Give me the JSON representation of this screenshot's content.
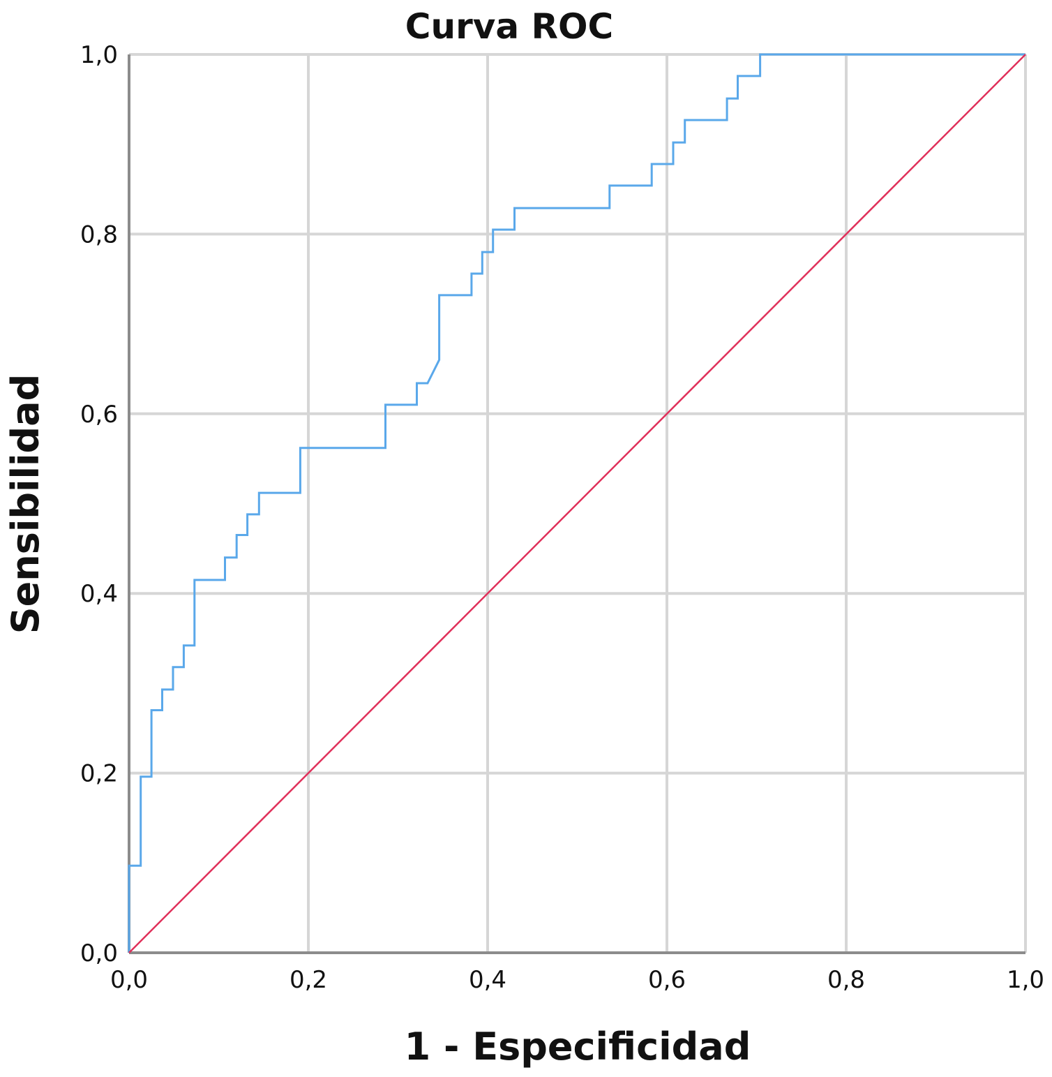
{
  "chart_data": {
    "type": "line",
    "title": "Curva ROC",
    "xlabel": "1 - Especificidad",
    "ylabel": "Sensibilidad",
    "xlim": [
      0,
      1
    ],
    "ylim": [
      0,
      1
    ],
    "x_ticks": [
      "0,0",
      "0,2",
      "0,4",
      "0,6",
      "0,8",
      "1,0"
    ],
    "y_ticks": [
      "0,0",
      "0,2",
      "0,4",
      "0,6",
      "0,8",
      "1,0"
    ],
    "grid": true,
    "colors": {
      "curve": "#5aa8ea",
      "reference": "#e0305a",
      "grid": "#d6d6d6",
      "axis": "#8c8c8c"
    },
    "series": [
      {
        "points": [
          [
            0.0,
            0.0
          ],
          [
            0.0,
            0.097
          ],
          [
            0.013,
            0.097
          ],
          [
            0.013,
            0.196
          ],
          [
            0.025,
            0.196
          ],
          [
            0.025,
            0.27
          ],
          [
            0.037,
            0.27
          ],
          [
            0.037,
            0.293
          ],
          [
            0.049,
            0.293
          ],
          [
            0.049,
            0.318
          ],
          [
            0.061,
            0.318
          ],
          [
            0.061,
            0.342
          ],
          [
            0.073,
            0.342
          ],
          [
            0.073,
            0.415
          ],
          [
            0.107,
            0.415
          ],
          [
            0.107,
            0.44
          ],
          [
            0.12,
            0.44
          ],
          [
            0.12,
            0.465
          ],
          [
            0.132,
            0.465
          ],
          [
            0.132,
            0.488
          ],
          [
            0.145,
            0.488
          ],
          [
            0.145,
            0.512
          ],
          [
            0.191,
            0.512
          ],
          [
            0.191,
            0.562
          ],
          [
            0.286,
            0.562
          ],
          [
            0.286,
            0.61
          ],
          [
            0.321,
            0.61
          ],
          [
            0.321,
            0.634
          ],
          [
            0.333,
            0.634
          ],
          [
            0.346,
            0.66
          ],
          [
            0.346,
            0.732
          ],
          [
            0.382,
            0.732
          ],
          [
            0.382,
            0.756
          ],
          [
            0.394,
            0.756
          ],
          [
            0.394,
            0.78
          ],
          [
            0.406,
            0.78
          ],
          [
            0.406,
            0.805
          ],
          [
            0.43,
            0.805
          ],
          [
            0.43,
            0.829
          ],
          [
            0.536,
            0.829
          ],
          [
            0.536,
            0.854
          ],
          [
            0.583,
            0.854
          ],
          [
            0.583,
            0.878
          ],
          [
            0.607,
            0.878
          ],
          [
            0.607,
            0.902
          ],
          [
            0.62,
            0.902
          ],
          [
            0.62,
            0.927
          ],
          [
            0.667,
            0.927
          ],
          [
            0.667,
            0.951
          ],
          [
            0.679,
            0.951
          ],
          [
            0.679,
            0.976
          ],
          [
            0.704,
            0.976
          ],
          [
            0.704,
            1.0
          ],
          [
            1.0,
            1.0
          ]
        ]
      },
      {
        "points": [
          [
            0.0,
            0.0
          ],
          [
            1.0,
            1.0
          ]
        ]
      }
    ]
  }
}
